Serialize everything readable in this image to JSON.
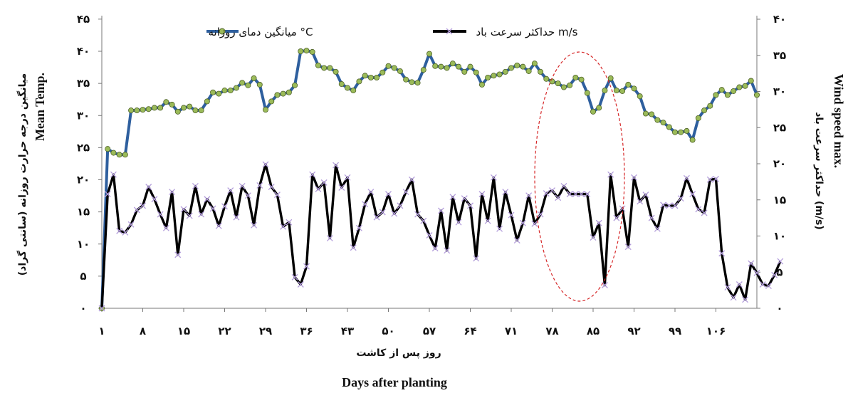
{
  "chart_data": {
    "type": "line",
    "xlabel_fa": "روز پس از کاشت",
    "xlabel_en": "Days after planting",
    "ylabel_left_fa": "میانگین درجه حرارت روزانه (سانتی گراد)",
    "ylabel_left_en": "Mean Temp.",
    "ylabel_right_fa": "حداکثر سرعت باد (m/s)",
    "ylabel_right_en": "Wind speed max.",
    "ylim_left": [
      0,
      40
    ],
    "ylim_right": [
      0,
      40
    ],
    "yticks_left": [
      "۰",
      "۵",
      "۱۰",
      "۱۵",
      "۲۰",
      "۲۵",
      "۳۰",
      "۳۵",
      "۴۰",
      "۴۵"
    ],
    "yticks_right": [
      "۰",
      "۵",
      "۱۰",
      "۱۵",
      "۲۰",
      "۲۵",
      "۳۰",
      "۳۵",
      "۴۰"
    ],
    "xticks": [
      {
        "day": 1,
        "label": "۱"
      },
      {
        "day": 8,
        "label": "۸"
      },
      {
        "day": 15,
        "label": "۱۵"
      },
      {
        "day": 22,
        "label": "۲۲"
      },
      {
        "day": 29,
        "label": "۲۹"
      },
      {
        "day": 36,
        "label": "۳۶"
      },
      {
        "day": 43,
        "label": "۴۳"
      },
      {
        "day": 50,
        "label": "۵۰"
      },
      {
        "day": 57,
        "label": "۵۷"
      },
      {
        "day": 64,
        "label": "۶۴"
      },
      {
        "day": 71,
        "label": "۷۱"
      },
      {
        "day": 78,
        "label": "۷۸"
      },
      {
        "day": 85,
        "label": "۸۵"
      },
      {
        "day": 92,
        "label": "۹۲"
      },
      {
        "day": 99,
        "label": "۹۹"
      },
      {
        "day": 106,
        "label": "۱۰۶"
      }
    ],
    "grid": false,
    "legend_position": "top",
    "series": [
      {
        "name": "میانگین دمای روزانه  °C",
        "color": "#2e5f9e",
        "marker_color": "#9bbb59",
        "axis": "left",
        "values": [
          0,
          24.8,
          24.2,
          23.9,
          23.9,
          30.8,
          30.8,
          30.9,
          31.0,
          31.2,
          31.2,
          32.1,
          31.7,
          30.6,
          31.2,
          31.4,
          30.8,
          30.8,
          32.2,
          33.6,
          33.4,
          33.9,
          33.9,
          34.3,
          35.1,
          34.7,
          35.8,
          34.8,
          30.9,
          32.2,
          33.2,
          33.4,
          33.6,
          34.7,
          40.0,
          40.1,
          39.9,
          37.8,
          37.4,
          37.4,
          36.8,
          34.9,
          34.3,
          33.9,
          35.3,
          36.2,
          35.9,
          35.9,
          36.7,
          37.7,
          37.4,
          36.9,
          35.6,
          35.2,
          35.1,
          37.1,
          39.6,
          37.7,
          37.6,
          37.4,
          38.1,
          37.6,
          36.8,
          37.6,
          36.7,
          34.8,
          35.9,
          36.2,
          36.4,
          36.8,
          37.4,
          37.8,
          37.6,
          36.9,
          38.1,
          36.8,
          35.7,
          35.3,
          35.0,
          34.4,
          34.7,
          35.9,
          35.6,
          33.5,
          30.6,
          31.2,
          33.9,
          35.8,
          33.9,
          33.8,
          34.8,
          34.2,
          33.0,
          30.3,
          30.2,
          29.3,
          28.9,
          28.2,
          27.4,
          27.4,
          27.6,
          26.2,
          29.6,
          30.8,
          31.5,
          33.2,
          34.0,
          33.2,
          33.8,
          34.4,
          34.6,
          35.4,
          33.2
        ]
      },
      {
        "name": "حداکثر سرعت باد  m/s",
        "color": "#000000",
        "marker_color": "#b39ddb",
        "axis": "right",
        "values": [
          0,
          15.8,
          18.5,
          10.7,
          10.5,
          11.6,
          13.6,
          14.2,
          16.8,
          15.1,
          13.0,
          11.1,
          16.1,
          7.4,
          13.7,
          12.8,
          16.9,
          13.0,
          15.1,
          13.8,
          11.4,
          14.1,
          16.3,
          12.6,
          16.9,
          15.6,
          11.5,
          17.0,
          19.9,
          16.8,
          15.7,
          11.3,
          11.9,
          4.3,
          3.3,
          5.8,
          18.5,
          16.5,
          17.4,
          9.7,
          19.8,
          16.7,
          18.1,
          8.4,
          11.1,
          14.4,
          16.1,
          12.6,
          13.3,
          15.8,
          13.1,
          14.2,
          16.1,
          17.8,
          13.0,
          12.1,
          10.1,
          8.3,
          13.5,
          8.0,
          15.4,
          11.9,
          15.2,
          14.2,
          6.9,
          15.8,
          12.1,
          18.1,
          11.0,
          16.1,
          12.9,
          9.4,
          11.8,
          15.6,
          11.7,
          13.0,
          15.9,
          16.3,
          15.3,
          16.9,
          15.8,
          15.8,
          15.8,
          15.8,
          9.8,
          11.8,
          3.2,
          18.5,
          12.5,
          13.8,
          8.5,
          18.1,
          14.8,
          15.7,
          12.5,
          11.0,
          14.3,
          14.2,
          14.2,
          15.2,
          18.0,
          15.8,
          13.7,
          13.2,
          17.8,
          17.9,
          7.6,
          2.9,
          1.5,
          3.3,
          1.2,
          6.2,
          4.9,
          3.3,
          3.1,
          4.6,
          6.5
        ]
      }
    ]
  }
}
